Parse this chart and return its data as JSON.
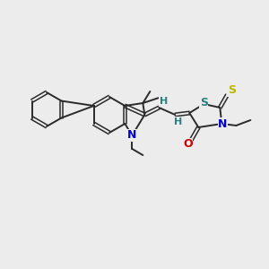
{
  "background_color": "#ececec",
  "bond_color": "#2a2a2a",
  "atom_colors": {
    "N": "#0000cc",
    "O": "#cc0000",
    "S_yellow": "#b8b800",
    "S_teal": "#2a8080",
    "H": "#2a8080",
    "C": "#2a2a2a"
  },
  "figsize": [
    3.0,
    3.0
  ],
  "dpi": 100
}
